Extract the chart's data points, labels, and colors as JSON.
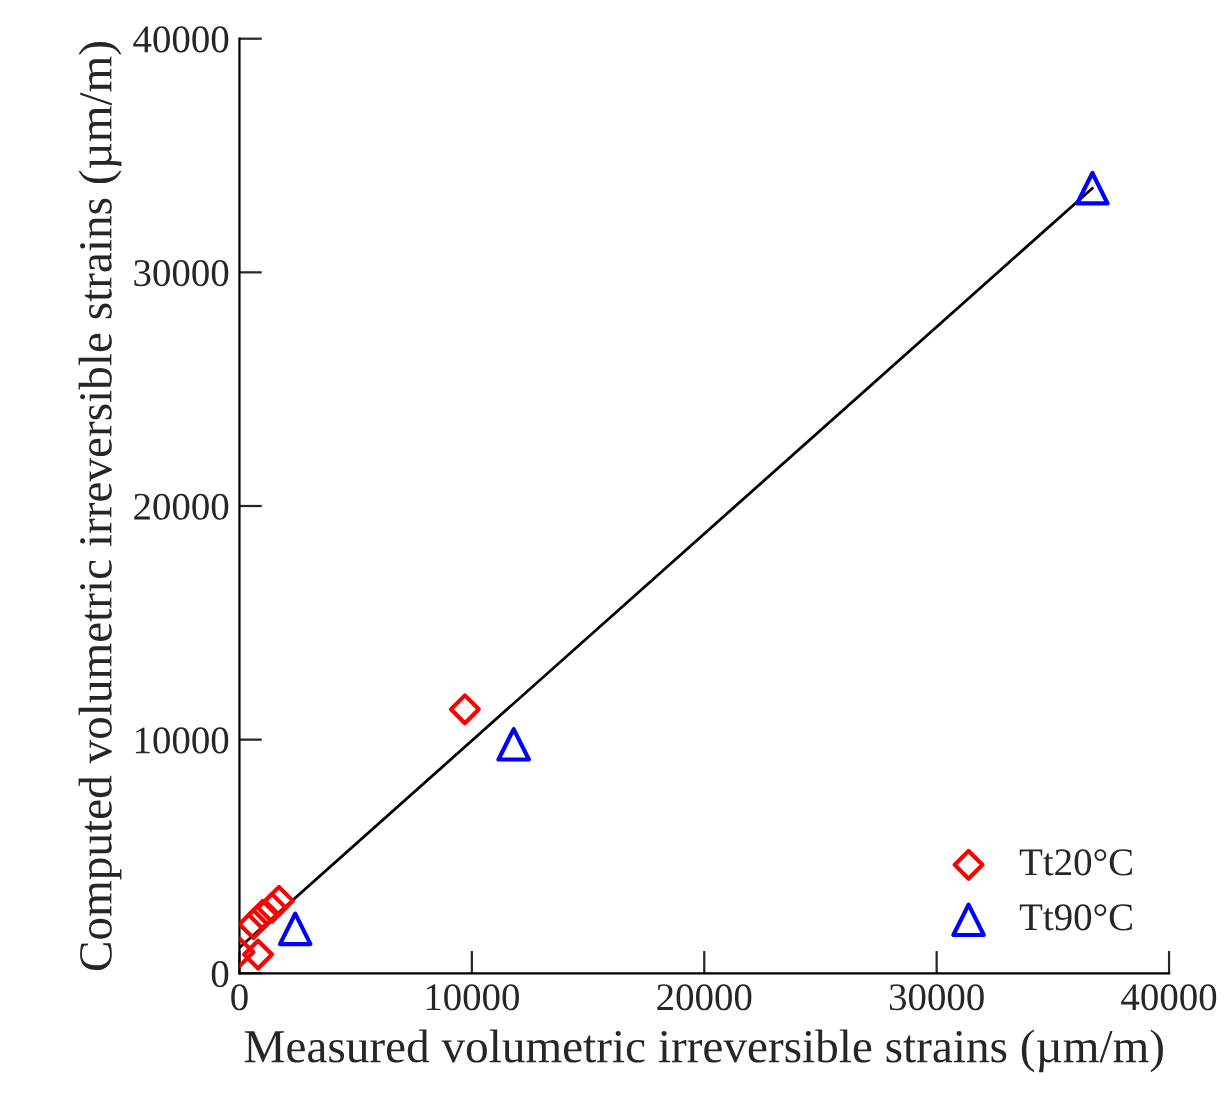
{
  "chart_data": {
    "type": "scatter",
    "xlabel": "Measured volumetric irreversible strains (µm/m)",
    "ylabel": "Computed volumetric irreversible strains (µm/m)",
    "xlim": [
      0,
      40000
    ],
    "ylim": [
      0,
      40000
    ],
    "xticks": [
      0,
      10000,
      20000,
      30000,
      40000
    ],
    "yticks": [
      0,
      10000,
      20000,
      30000,
      40000
    ],
    "grid": false,
    "legend": "bottom right",
    "series": [
      {
        "name": "Tt20°C",
        "color": "#ff0000",
        "marker": "diamond",
        "x": [
          0,
          800,
          600,
          1000,
          1400,
          1700,
          9700
        ],
        "values": [
          900,
          800,
          2100,
          2500,
          2800,
          3100,
          11300
        ]
      },
      {
        "name": "Tt90°C",
        "color": "#0000ff",
        "marker": "triangle",
        "x": [
          2400,
          11800,
          36700
        ],
        "values": [
          1900,
          9800,
          33600
        ]
      },
      {
        "type": "line",
        "color": "#000000",
        "marker": "none",
        "line_style": "solid",
        "x": [
          0,
          36700
        ],
        "values": [
          1100,
          33600
        ]
      }
    ]
  }
}
